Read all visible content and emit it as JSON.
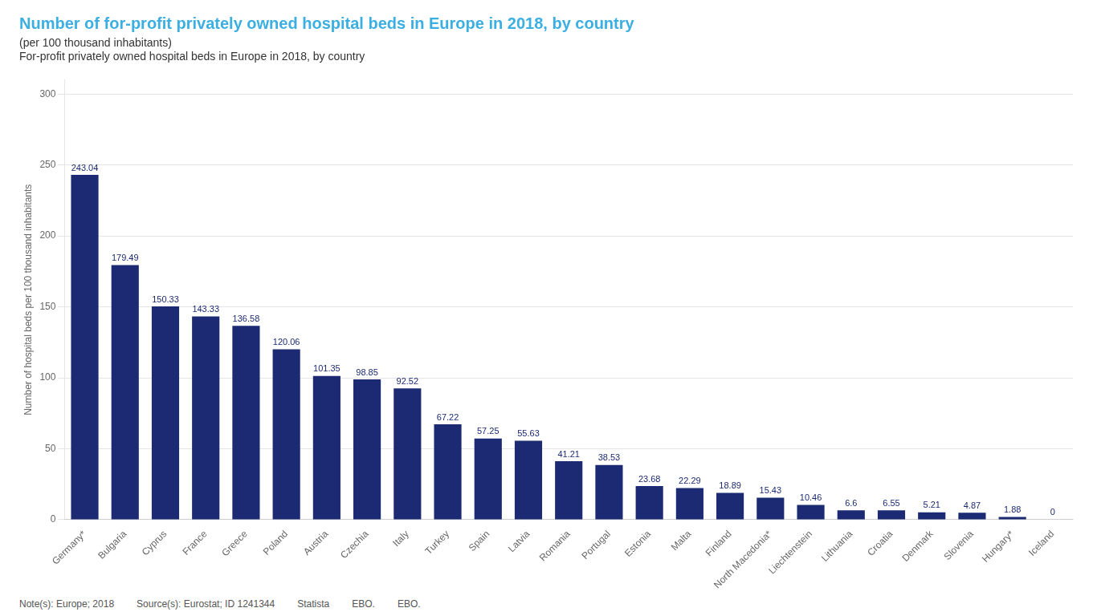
{
  "chart_data": {
    "type": "bar",
    "title": "Number of for-profit privately owned hospital beds in Europe in 2018, by country",
    "subtitle": [
      "(per 100 thousand inhabitants)",
      "For-profit privately owned hospital beds in Europe in 2018, by country"
    ],
    "ylabel": "Number of hospital beds per 100 thousand inhabitants",
    "annotations": [
      "Note(s): Europe; 2018",
      "Source(s): Eurostat; ID 1241344",
      "Statista",
      "EBO.",
      "EBO."
    ],
    "categories": [
      "Germany*",
      "Bulgaria",
      "Cyprus",
      "France",
      "Greece",
      "Poland",
      "Austria",
      "Czechia",
      "Italy",
      "Turkey",
      "Spain",
      "Latvia",
      "Romania",
      "Portugal",
      "Estonia",
      "Malta",
      "Finland",
      "North Macedonia*",
      "Liechtenstein",
      "Lithuania",
      "Croatia",
      "Denmark",
      "Slovenia",
      "Hungary*",
      "Iceland"
    ],
    "values": [
      243.04,
      179.49,
      150.33,
      143.33,
      136.58,
      120.06,
      101.35,
      98.85,
      92.52,
      67.22,
      57.25,
      55.63,
      41.21,
      38.53,
      23.68,
      22.29,
      18.89,
      15.43,
      10.46,
      6.6,
      6.55,
      5.21,
      4.87,
      1.88,
      0
    ],
    "color": "#1b2a72",
    "ylim": [
      0,
      310
    ],
    "yticks": [
      0,
      50,
      100,
      150,
      200,
      250,
      300
    ],
    "grid": true,
    "data_labels": true
  }
}
